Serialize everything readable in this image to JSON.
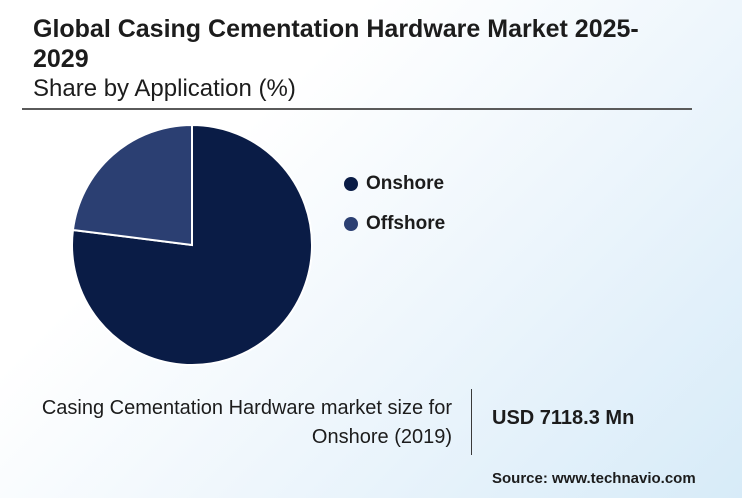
{
  "header": {
    "title": "Global Casing Cementation Hardware Market 2025-2029",
    "subtitle": "Share by Application (%)"
  },
  "chart_data": {
    "type": "pie",
    "categories": [
      "Onshore",
      "Offshore"
    ],
    "values": [
      77,
      23
    ],
    "colors": [
      "#0a1c46",
      "#2b3f72"
    ],
    "legend_position": "right"
  },
  "legend": {
    "items": [
      {
        "label": "Onshore",
        "color": "#0a1c46"
      },
      {
        "label": "Offshore",
        "color": "#2b3f72"
      }
    ]
  },
  "footnote": {
    "label": "Casing Cementation Hardware market size for Onshore (2019)",
    "value": "USD 7118.3 Mn"
  },
  "source": "Source: www.technavio.com"
}
